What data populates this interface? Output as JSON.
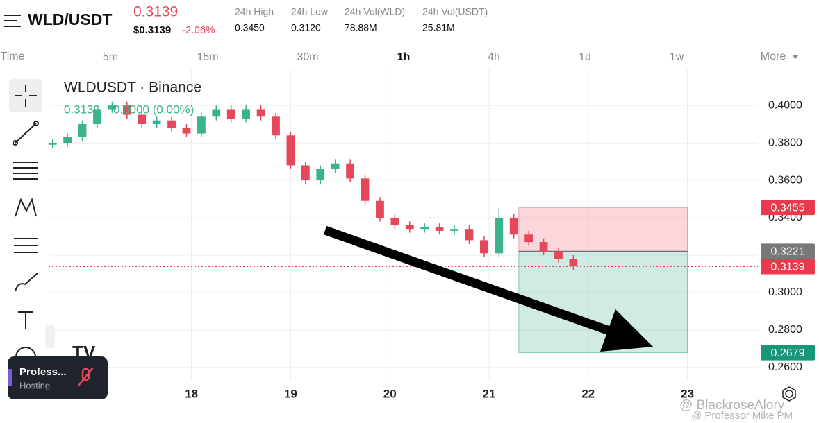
{
  "header": {
    "symbol": "WLD/USDT",
    "price": "0.3139",
    "price_usd": "$0.3139",
    "change": "-2.06%",
    "stats": [
      {
        "label": "24h High",
        "value": "0.3450"
      },
      {
        "label": "24h Low",
        "value": "0.3120"
      },
      {
        "label": "24h Vol(WLD)",
        "value": "78.88M"
      },
      {
        "label": "24h Vol(USDT)",
        "value": "25.81M"
      }
    ]
  },
  "timeframes": [
    "Time",
    "5m",
    "15m",
    "30m",
    "1h",
    "4h",
    "1d",
    "1w",
    "More"
  ],
  "chart_data": {
    "type": "candlestick",
    "title": "WLDUSDT · Binance",
    "legend": [
      "0.3139",
      "0.0000 (0.00%)"
    ],
    "x": [
      16.6,
      16.75,
      16.9,
      17.05,
      17.2,
      17.35,
      17.5,
      17.65,
      17.8,
      17.95,
      18.1,
      18.25,
      18.4,
      18.55,
      18.7,
      18.85,
      19.0,
      19.15,
      19.3,
      19.45,
      19.6,
      19.75,
      19.9,
      20.05,
      20.2,
      20.35,
      20.5,
      20.65,
      20.8,
      20.95,
      21.1,
      21.25,
      21.4,
      21.55,
      21.7,
      21.85
    ],
    "open": [
      0.379,
      0.38,
      0.383,
      0.39,
      0.398,
      0.4,
      0.395,
      0.39,
      0.392,
      0.388,
      0.385,
      0.394,
      0.398,
      0.393,
      0.398,
      0.394,
      0.384,
      0.368,
      0.36,
      0.366,
      0.369,
      0.361,
      0.349,
      0.34,
      0.336,
      0.334,
      0.335,
      0.333,
      0.334,
      0.328,
      0.321,
      0.34,
      0.331,
      0.327,
      0.322,
      0.318
    ],
    "high": [
      0.382,
      0.385,
      0.392,
      0.4,
      0.402,
      0.402,
      0.397,
      0.394,
      0.394,
      0.39,
      0.396,
      0.4,
      0.4,
      0.4,
      0.4,
      0.396,
      0.386,
      0.37,
      0.368,
      0.371,
      0.371,
      0.363,
      0.351,
      0.342,
      0.338,
      0.337,
      0.337,
      0.336,
      0.336,
      0.33,
      0.345,
      0.342,
      0.333,
      0.329,
      0.324,
      0.32
    ],
    "low": [
      0.377,
      0.378,
      0.381,
      0.388,
      0.396,
      0.393,
      0.388,
      0.388,
      0.386,
      0.383,
      0.383,
      0.392,
      0.391,
      0.391,
      0.392,
      0.382,
      0.366,
      0.358,
      0.358,
      0.364,
      0.359,
      0.347,
      0.338,
      0.334,
      0.332,
      0.332,
      0.331,
      0.331,
      0.326,
      0.319,
      0.319,
      0.329,
      0.325,
      0.32,
      0.316,
      0.312
    ],
    "close": [
      0.38,
      0.383,
      0.39,
      0.398,
      0.4,
      0.395,
      0.39,
      0.392,
      0.388,
      0.385,
      0.394,
      0.398,
      0.393,
      0.398,
      0.394,
      0.384,
      0.368,
      0.36,
      0.366,
      0.369,
      0.361,
      0.349,
      0.34,
      0.336,
      0.334,
      0.335,
      0.333,
      0.334,
      0.328,
      0.321,
      0.34,
      0.331,
      0.327,
      0.322,
      0.318,
      0.314
    ],
    "up_color": "#3bb38c",
    "down_color": "#e5475b",
    "xlim": [
      16.56,
      23.71
    ],
    "ylim": [
      0.2533,
      0.4193
    ],
    "xticks": [
      18,
      19,
      20,
      21,
      22,
      23
    ],
    "yticks": [
      {
        "value": 0.26,
        "label": "0.2600"
      },
      {
        "value": 0.28,
        "label": "0.2800"
      },
      {
        "value": 0.3,
        "label": "0.3000"
      },
      {
        "value": 0.32,
        "label": "0.3200"
      },
      {
        "value": 0.34,
        "label": "0.3400"
      },
      {
        "value": 0.36,
        "label": "0.3600"
      },
      {
        "value": 0.38,
        "label": "0.3800"
      },
      {
        "value": 0.4,
        "label": "0.4000"
      }
    ],
    "grid": true,
    "position": {
      "x_start": 21.3,
      "x_end": 23,
      "entry": 0.3221,
      "stop": 0.3455,
      "target": 0.2679
    },
    "price_lines": [
      {
        "value": 0.3455,
        "color": "#e8394f"
      },
      {
        "value": 0.3221,
        "color": "#787878"
      },
      {
        "value": 0.3139,
        "color": "#e8394f"
      },
      {
        "value": 0.2679,
        "color": "#17967a"
      }
    ]
  },
  "overlay": {
    "name": "Profess...",
    "status": "Hosting"
  },
  "watermark": [
    "@ BlackroseAlory",
    "@ Professor Mike PM"
  ]
}
